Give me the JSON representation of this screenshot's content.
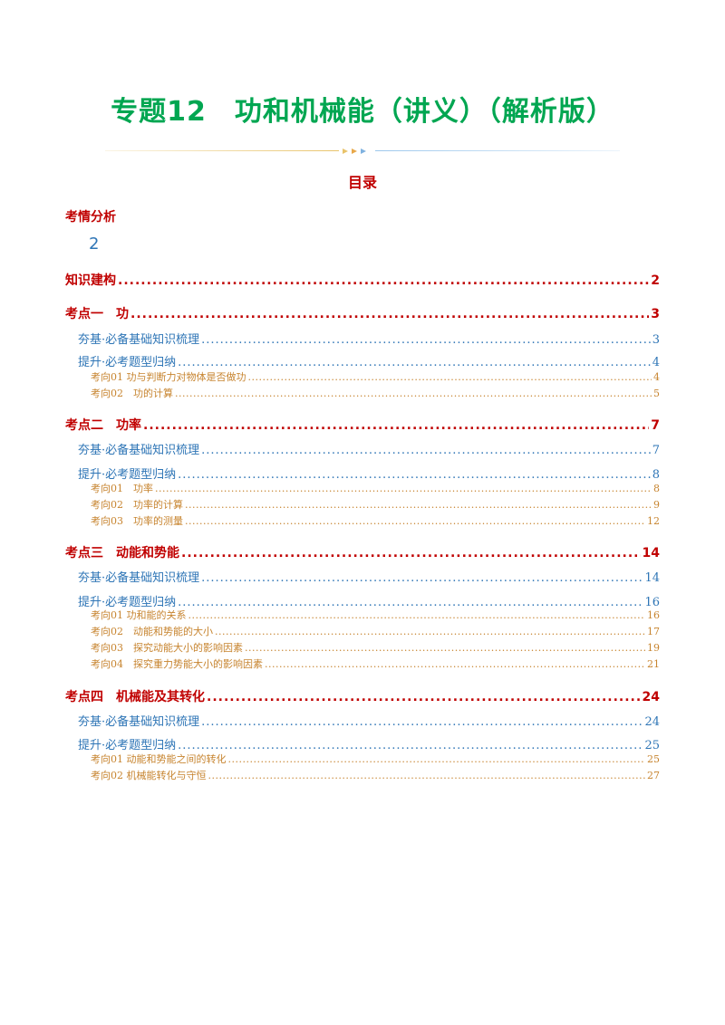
{
  "document": {
    "title": "专题12　功和机械能（讲义）（解析版）",
    "toc_heading": "目录",
    "analysis": {
      "label": "考情分析",
      "page": "2"
    },
    "colors": {
      "title": "#00a651",
      "level1": "#c00000",
      "level2": "#2e75b6",
      "level3": "#c7842f"
    }
  },
  "toc": [
    {
      "level": 1,
      "label": "知识建构",
      "page": "2"
    },
    {
      "level": 1,
      "label": "考点一　功",
      "page": "3"
    },
    {
      "level": 2,
      "label": "夯基·必备基础知识梳理",
      "page": "3"
    },
    {
      "level": 2,
      "label": "提升·必考题型归纳",
      "page": "4"
    },
    {
      "level": 3,
      "label": "考向01 功与判断力对物体是否做功",
      "page": "4"
    },
    {
      "level": 3,
      "label": "考向02　功的计算",
      "page": "5"
    },
    {
      "level": 1,
      "label": "考点二　功率",
      "page": "7"
    },
    {
      "level": 2,
      "label": "夯基·必备基础知识梳理",
      "page": "7"
    },
    {
      "level": 2,
      "label": "提升·必考题型归纳",
      "page": "8"
    },
    {
      "level": 3,
      "label": "考向01　功率",
      "page": "8"
    },
    {
      "level": 3,
      "label": "考向02　功率的计算",
      "page": "9"
    },
    {
      "level": 3,
      "label": "考向03　功率的测量",
      "page": "12"
    },
    {
      "level": 1,
      "label": "考点三　动能和势能",
      "page": "14"
    },
    {
      "level": 2,
      "label": "夯基·必备基础知识梳理",
      "page": "14"
    },
    {
      "level": 2,
      "label": "提升·必考题型归纳",
      "page": "16"
    },
    {
      "level": 3,
      "label": "考向01 功和能的关系",
      "page": "16"
    },
    {
      "level": 3,
      "label": "考向02　动能和势能的大小",
      "page": "17"
    },
    {
      "level": 3,
      "label": "考向03　探究动能大小的影响因素",
      "page": "19"
    },
    {
      "level": 3,
      "label": "考向04　探究重力势能大小的影响因素",
      "page": "21"
    },
    {
      "level": 1,
      "label": "考点四　机械能及其转化",
      "page": "24"
    },
    {
      "level": 2,
      "label": "夯基·必备基础知识梳理",
      "page": "24"
    },
    {
      "level": 2,
      "label": "提升·必考题型归纳",
      "page": "25"
    },
    {
      "level": 3,
      "label": "考向01 动能和势能之间的转化",
      "page": "25"
    },
    {
      "level": 3,
      "label": "考向02 机械能转化与守恒",
      "page": "27"
    }
  ]
}
